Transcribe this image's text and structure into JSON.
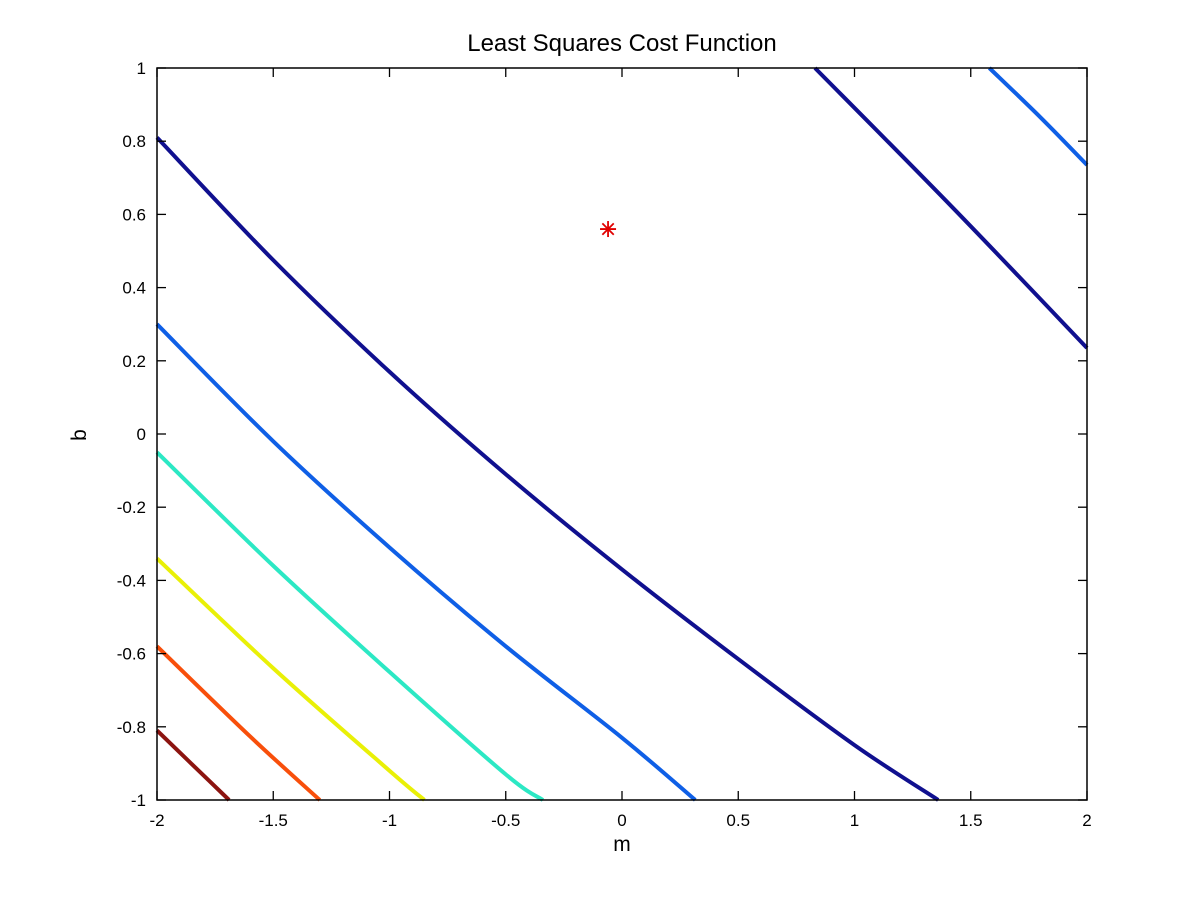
{
  "chart_data": {
    "type": "contour",
    "title": "Least Squares Cost Function",
    "xlabel": "m",
    "ylabel": "b",
    "xlim": [
      -2,
      2
    ],
    "ylim": [
      -1,
      1
    ],
    "grid": false,
    "legend": "none",
    "box": true,
    "x_ticks": [
      -2,
      -1.5,
      -1,
      -0.5,
      0,
      0.5,
      1,
      1.5,
      2
    ],
    "x_tick_labels": [
      "-2",
      "-1.5",
      "-1",
      "-0.5",
      "0",
      "0.5",
      "1",
      "1.5",
      "2"
    ],
    "y_ticks": [
      -1,
      -0.8,
      -0.6,
      -0.4,
      -0.2,
      0,
      0.2,
      0.4,
      0.6,
      0.8,
      1
    ],
    "y_tick_labels": [
      "-1",
      "-0.8",
      "-0.6",
      "-0.4",
      "-0.2",
      "0",
      "0.2",
      "0.4",
      "0.6",
      "0.8",
      "1"
    ],
    "minimum_marker": {
      "m": -0.06,
      "b": 0.56,
      "shape": "asterisk",
      "color": "#E00000"
    },
    "line_width": 4,
    "series": [
      {
        "name": "level-1-dark-blue",
        "color": "#10108F",
        "arcs": [
          [
            [
              -2,
              0.81
            ],
            [
              -1.5,
              0.475
            ],
            [
              -1,
              0.17
            ],
            [
              -0.5,
              -0.11
            ],
            [
              0,
              -0.37
            ],
            [
              0.5,
              -0.615
            ],
            [
              1,
              -0.85
            ],
            [
              1.36,
              -1
            ]
          ],
          [
            [
              0.83,
              1
            ],
            [
              1.42,
              0.62
            ],
            [
              2,
              0.235
            ]
          ]
        ]
      },
      {
        "name": "level-2-blue",
        "color": "#0F5FE6",
        "arcs": [
          [
            [
              -2,
              0.3
            ],
            [
              -1.5,
              -0.02
            ],
            [
              -1,
              -0.31
            ],
            [
              -0.5,
              -0.58
            ],
            [
              0,
              -0.83
            ],
            [
              0.315,
              -1
            ]
          ],
          [
            [
              1.58,
              1
            ],
            [
              1.8,
              0.865
            ],
            [
              2,
              0.735
            ]
          ]
        ]
      },
      {
        "name": "level-3-turquoise",
        "color": "#2CE8C4",
        "arcs": [
          [
            [
              -2,
              -0.05
            ],
            [
              -1.5,
              -0.36
            ],
            [
              -1,
              -0.65
            ],
            [
              -0.5,
              -0.93
            ],
            [
              -0.34,
              -1
            ]
          ]
        ]
      },
      {
        "name": "level-4-yellow",
        "color": "#E9F007",
        "arcs": [
          [
            [
              -2,
              -0.34
            ],
            [
              -1.5,
              -0.64
            ],
            [
              -1,
              -0.92
            ],
            [
              -0.85,
              -1
            ]
          ]
        ]
      },
      {
        "name": "level-5-orange",
        "color": "#F84F0B",
        "arcs": [
          [
            [
              -2,
              -0.58
            ],
            [
              -1.6,
              -0.826
            ],
            [
              -1.3,
              -1
            ]
          ]
        ]
      },
      {
        "name": "level-6-dark-red",
        "color": "#8C1410",
        "arcs": [
          [
            [
              -2,
              -0.81
            ],
            [
              -1.85,
              -0.902
            ],
            [
              -1.69,
              -1
            ]
          ]
        ]
      }
    ]
  }
}
